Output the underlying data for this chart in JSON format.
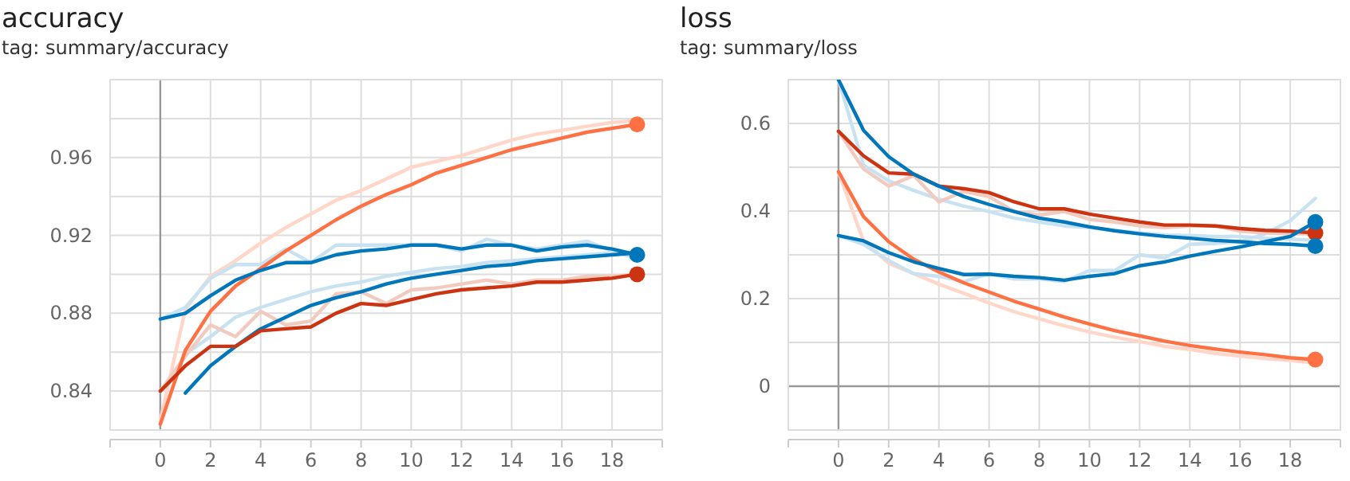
{
  "chart_data": [
    {
      "type": "line",
      "title": "accuracy",
      "subtitle": "tag: summary/accuracy",
      "x": [
        0,
        1,
        2,
        3,
        4,
        5,
        6,
        7,
        8,
        9,
        10,
        11,
        12,
        13,
        14,
        15,
        16,
        17,
        18,
        19
      ],
      "xlim": [
        -2,
        20
      ],
      "ylim": [
        0.82,
        1.0
      ],
      "xticks": [
        0,
        2,
        4,
        6,
        8,
        10,
        12,
        14,
        16,
        18
      ],
      "yticks": [
        {
          "value": 0.82,
          "label": null
        },
        0.84,
        {
          "value": 0.86,
          "label": null
        },
        0.88,
        {
          "value": 0.9,
          "label": null
        },
        0.92,
        {
          "value": 0.94,
          "label": null
        },
        0.96,
        {
          "value": 0.98,
          "label": null
        },
        {
          "value": 1.0,
          "label": null
        }
      ],
      "grid": true,
      "series": [
        {
          "color": "#ffd6c8",
          "values": [
            0.825,
            0.882,
            0.899,
            0.907,
            0.916,
            0.924,
            0.931,
            0.938,
            0.943,
            0.949,
            0.955,
            0.958,
            0.961,
            0.965,
            0.969,
            0.972,
            0.974,
            0.976,
            0.978,
            0.979
          ]
        },
        {
          "color": "#c9e2f2",
          "values": [
            0.877,
            0.883,
            0.898,
            0.905,
            0.905,
            0.913,
            0.906,
            0.915,
            0.915,
            0.915,
            0.915,
            0.915,
            0.912,
            0.918,
            0.915,
            0.913,
            0.915,
            0.917,
            0.912,
            0.908
          ]
        },
        {
          "color": "#c9e2f2",
          "values": [
            null,
            0.859,
            0.868,
            0.878,
            0.883,
            0.887,
            0.891,
            0.894,
            0.896,
            0.899,
            0.901,
            0.903,
            0.904,
            0.906,
            0.907,
            0.908,
            0.909,
            0.91,
            0.911,
            0.911
          ]
        },
        {
          "color": "#f2cbc0",
          "values": [
            0.84,
            0.858,
            0.874,
            0.868,
            0.881,
            0.874,
            0.876,
            0.89,
            0.891,
            0.885,
            0.892,
            0.893,
            0.895,
            0.897,
            0.895,
            0.897,
            0.897,
            0.899,
            0.899,
            0.9
          ]
        },
        {
          "color": "#ff7043",
          "values": [
            0.823,
            0.861,
            0.881,
            0.894,
            0.903,
            0.912,
            0.92,
            0.928,
            0.935,
            0.941,
            0.946,
            0.952,
            0.956,
            0.96,
            0.964,
            0.967,
            0.97,
            0.973,
            0.975,
            0.977
          ]
        },
        {
          "color": "#0077bb",
          "values": [
            0.877,
            0.88,
            0.889,
            0.897,
            0.902,
            0.906,
            0.906,
            0.91,
            0.912,
            0.913,
            0.915,
            0.915,
            0.913,
            0.915,
            0.915,
            0.912,
            0.914,
            0.915,
            0.913,
            0.91
          ]
        },
        {
          "color": "#0077bb",
          "values": [
            null,
            0.839,
            0.853,
            0.863,
            0.872,
            0.878,
            0.884,
            0.888,
            0.891,
            0.895,
            0.898,
            0.9,
            0.902,
            0.904,
            0.905,
            0.907,
            0.908,
            0.909,
            0.91,
            0.911
          ]
        },
        {
          "color": "#cc3311",
          "values": [
            0.84,
            0.853,
            0.863,
            0.863,
            0.871,
            0.872,
            0.873,
            0.88,
            0.885,
            0.884,
            0.887,
            0.89,
            0.892,
            0.893,
            0.894,
            0.896,
            0.896,
            0.897,
            0.898,
            0.9
          ]
        },
        {
          "type": "scatter",
          "marker": "circle",
          "color": "#ff7043",
          "values": [
            null,
            null,
            null,
            null,
            null,
            null,
            null,
            null,
            null,
            null,
            null,
            null,
            null,
            null,
            null,
            null,
            null,
            null,
            null,
            0.977
          ]
        },
        {
          "type": "scatter",
          "marker": "circle",
          "color": "#0077bb",
          "values": [
            null,
            null,
            null,
            null,
            null,
            null,
            null,
            null,
            null,
            null,
            null,
            null,
            null,
            null,
            null,
            null,
            null,
            null,
            null,
            0.91
          ]
        },
        {
          "type": "scatter",
          "marker": "circle",
          "color": "#cc3311",
          "values": [
            null,
            null,
            null,
            null,
            null,
            null,
            null,
            null,
            null,
            null,
            null,
            null,
            null,
            null,
            null,
            null,
            null,
            null,
            null,
            0.9
          ]
        }
      ]
    },
    {
      "type": "line",
      "title": "loss",
      "subtitle": "tag: summary/loss",
      "x": [
        0,
        1,
        2,
        3,
        4,
        5,
        6,
        7,
        8,
        9,
        10,
        11,
        12,
        13,
        14,
        15,
        16,
        17,
        18,
        19
      ],
      "xlim": [
        -2,
        20
      ],
      "ylim": [
        -0.1,
        0.7
      ],
      "xticks": [
        0,
        2,
        4,
        6,
        8,
        10,
        12,
        14,
        16,
        18
      ],
      "yticks": [
        {
          "value": -0.1,
          "label": null
        },
        0,
        {
          "value": 0.1,
          "label": null
        },
        0.2,
        {
          "value": 0.3,
          "label": null
        },
        0.4,
        {
          "value": 0.5,
          "label": null
        },
        0.6,
        {
          "value": 0.7,
          "label": null
        }
      ],
      "grid": true,
      "series": [
        {
          "color": "#ffd6c8",
          "values": [
            0.49,
            0.33,
            0.281,
            0.257,
            0.233,
            0.212,
            0.19,
            0.17,
            0.154,
            0.138,
            0.124,
            0.112,
            0.102,
            0.091,
            0.084,
            0.075,
            0.069,
            0.063,
            0.059,
            0.053
          ]
        },
        {
          "color": "#c9e2f2",
          "values": [
            0.7,
            0.505,
            0.469,
            0.447,
            0.427,
            0.411,
            0.399,
            0.384,
            0.375,
            0.366,
            0.362,
            0.356,
            0.35,
            0.345,
            0.344,
            0.342,
            0.342,
            0.338,
            0.336,
            0.333
          ]
        },
        {
          "color": "#c9e2f2",
          "values": [
            0.344,
            0.324,
            0.287,
            0.257,
            0.251,
            0.239,
            0.257,
            0.245,
            0.245,
            0.239,
            0.264,
            0.264,
            0.3,
            0.293,
            0.324,
            0.326,
            0.33,
            0.348,
            0.378,
            0.429
          ]
        },
        {
          "color": "#f2cbc0",
          "values": [
            0.582,
            0.496,
            0.457,
            0.481,
            0.421,
            0.445,
            0.433,
            0.399,
            0.391,
            0.399,
            0.381,
            0.375,
            0.366,
            0.362,
            0.366,
            0.366,
            0.354,
            0.35,
            0.348,
            0.348
          ]
        },
        {
          "color": "#ff7043",
          "values": [
            0.49,
            0.387,
            0.33,
            0.29,
            0.261,
            0.236,
            0.215,
            0.194,
            0.176,
            0.158,
            0.142,
            0.127,
            0.115,
            0.103,
            0.093,
            0.085,
            0.078,
            0.072,
            0.065,
            0.061
          ]
        },
        {
          "color": "#cc3311",
          "values": [
            0.582,
            0.526,
            0.487,
            0.484,
            0.457,
            0.451,
            0.442,
            0.421,
            0.405,
            0.405,
            0.393,
            0.384,
            0.375,
            0.368,
            0.368,
            0.366,
            0.36,
            0.356,
            0.354,
            0.35
          ]
        },
        {
          "color": "#0077bb",
          "values": [
            0.7,
            0.584,
            0.524,
            0.484,
            0.457,
            0.433,
            0.415,
            0.399,
            0.384,
            0.375,
            0.364,
            0.355,
            0.348,
            0.342,
            0.338,
            0.333,
            0.33,
            0.326,
            0.324,
            0.32
          ]
        },
        {
          "color": "#0077bb",
          "values": [
            0.344,
            0.332,
            0.305,
            0.284,
            0.269,
            0.255,
            0.256,
            0.251,
            0.248,
            0.242,
            0.251,
            0.257,
            0.275,
            0.284,
            0.297,
            0.308,
            0.318,
            0.33,
            0.342,
            0.375
          ]
        },
        {
          "type": "scatter",
          "marker": "circle",
          "color": "#ff7043",
          "values": [
            null,
            null,
            null,
            null,
            null,
            null,
            null,
            null,
            null,
            null,
            null,
            null,
            null,
            null,
            null,
            null,
            null,
            null,
            null,
            0.061
          ]
        },
        {
          "type": "scatter",
          "marker": "circle",
          "color": "#cc3311",
          "values": [
            null,
            null,
            null,
            null,
            null,
            null,
            null,
            null,
            null,
            null,
            null,
            null,
            null,
            null,
            null,
            null,
            null,
            null,
            null,
            0.35
          ]
        },
        {
          "type": "scatter",
          "marker": "circle",
          "color": "#0077bb",
          "values": [
            null,
            null,
            null,
            null,
            null,
            null,
            null,
            null,
            null,
            null,
            null,
            null,
            null,
            null,
            null,
            null,
            null,
            null,
            null,
            0.32
          ]
        },
        {
          "type": "scatter",
          "marker": "circle",
          "color": "#0077bb",
          "values": [
            null,
            null,
            null,
            null,
            null,
            null,
            null,
            null,
            null,
            null,
            null,
            null,
            null,
            null,
            null,
            null,
            null,
            null,
            null,
            0.375
          ]
        }
      ]
    }
  ]
}
